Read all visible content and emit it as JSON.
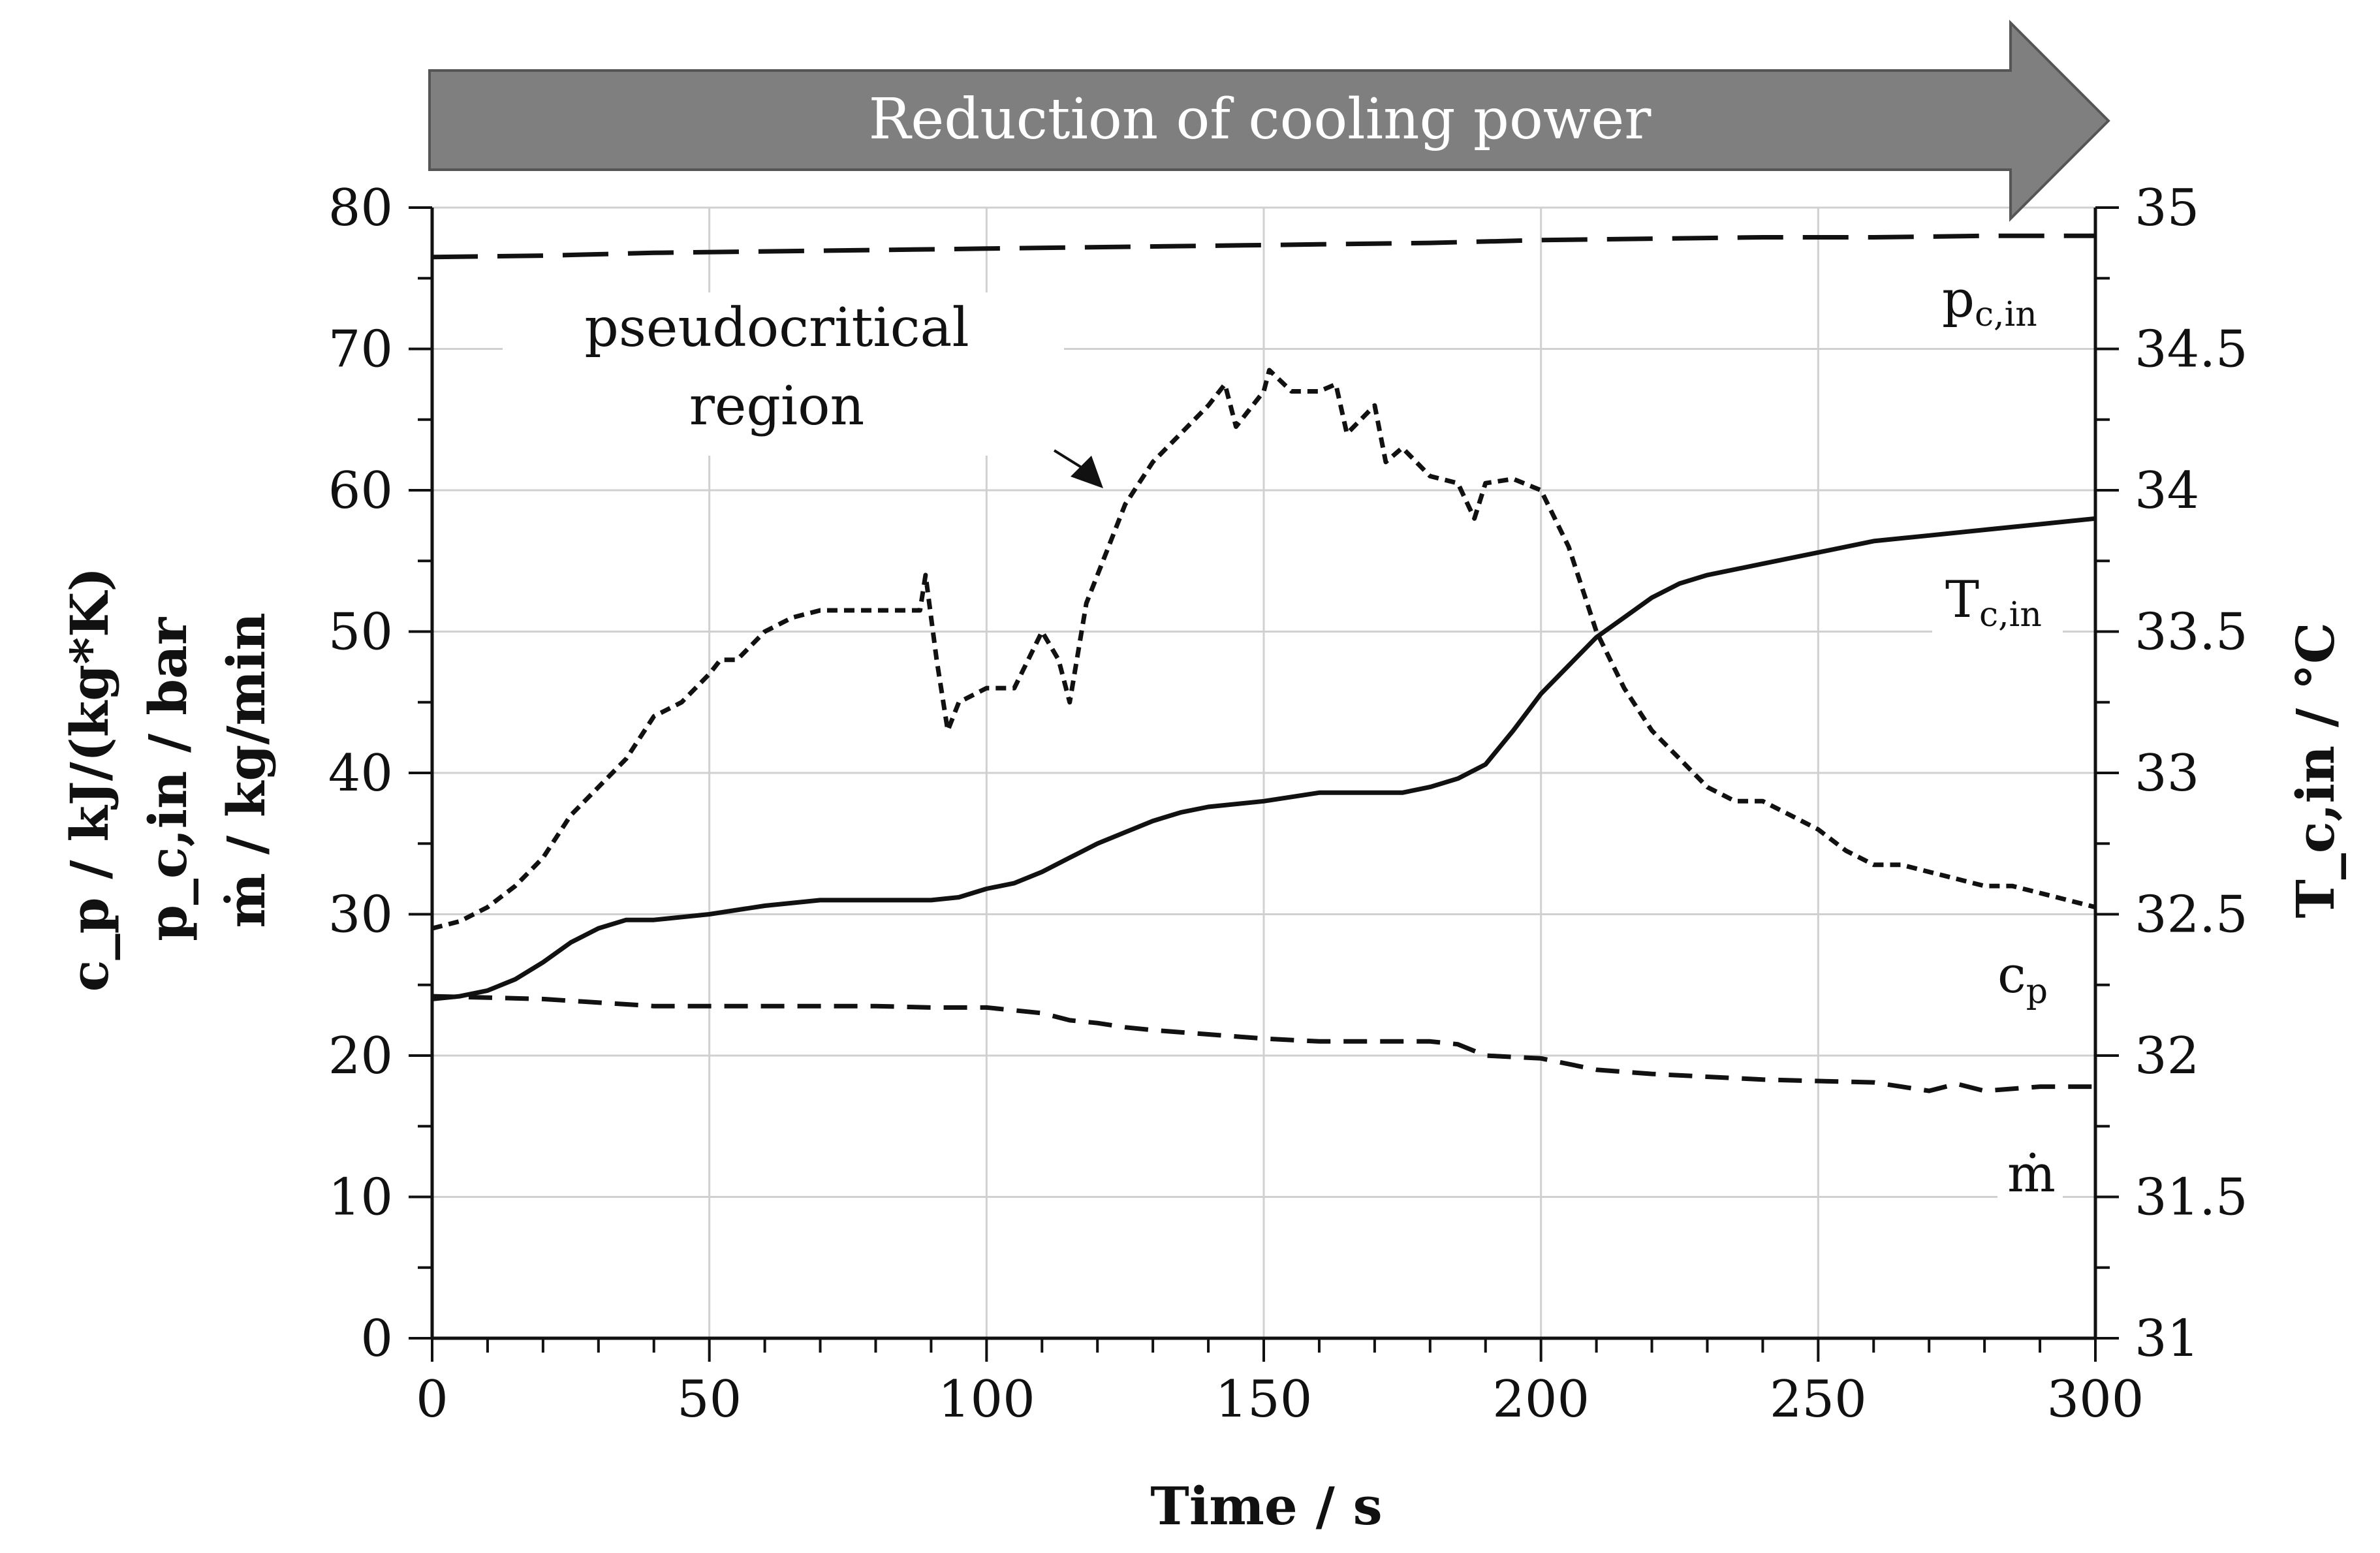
{
  "banner": {
    "text": "Reduction of cooling power"
  },
  "annotations": {
    "region_line1": "pseudocritical",
    "region_line2": "region"
  },
  "chart_data": {
    "type": "line",
    "title": "",
    "xlabel": "Time / s",
    "ylabel_left_lines": [
      "c_p / kJ/(kg*K)",
      "p_c,in / bar",
      "ṁ / kg/min"
    ],
    "ylabel_right": "T_c,in / °C",
    "xlim": [
      0,
      300
    ],
    "ylim_left": [
      0,
      80
    ],
    "ylim_right": [
      31,
      35
    ],
    "x_ticks": [
      0,
      50,
      100,
      150,
      200,
      250,
      300
    ],
    "y_left_ticks": [
      0,
      10,
      20,
      30,
      40,
      50,
      60,
      70,
      80
    ],
    "y_right_ticks": [
      "31",
      "31.5",
      "32",
      "32.5",
      "33",
      "33.5",
      "34",
      "34.5",
      "35"
    ],
    "grid": true,
    "series": [
      {
        "name": "p_c,in",
        "label_main": "p",
        "label_sub": "c,in",
        "axis": "left",
        "style": "long-dash",
        "x": [
          0,
          20,
          40,
          60,
          80,
          100,
          120,
          140,
          160,
          180,
          200,
          220,
          240,
          260,
          280,
          300
        ],
        "y": [
          76.5,
          76.6,
          76.8,
          76.9,
          77.0,
          77.1,
          77.2,
          77.3,
          77.4,
          77.5,
          77.7,
          77.8,
          77.9,
          77.9,
          78.0,
          78.0
        ]
      },
      {
        "name": "c_p",
        "label_main": "c",
        "label_sub": "p",
        "axis": "left",
        "style": "short-dash",
        "x": [
          0,
          5,
          10,
          15,
          20,
          25,
          30,
          35,
          40,
          45,
          50,
          52,
          55,
          60,
          65,
          70,
          80,
          88,
          89,
          91,
          93,
          95,
          100,
          105,
          110,
          113,
          115,
          118,
          120,
          125,
          130,
          135,
          140,
          143,
          145,
          150,
          151,
          155,
          160,
          163,
          165,
          170,
          172,
          175,
          180,
          185,
          188,
          190,
          195,
          200,
          205,
          210,
          215,
          220,
          225,
          230,
          235,
          240,
          245,
          250,
          255,
          260,
          265,
          270,
          275,
          280,
          285,
          290,
          295,
          300
        ],
        "y": [
          29,
          29.5,
          30.5,
          32,
          34,
          37,
          39,
          41,
          44,
          45,
          47,
          48,
          48,
          50,
          51,
          51.5,
          51.5,
          51.5,
          54,
          48,
          43,
          45,
          46,
          46,
          50,
          48,
          45,
          52,
          54,
          59,
          62,
          64,
          66,
          67.5,
          64.5,
          67,
          68.5,
          67,
          67,
          67.5,
          64,
          66,
          62,
          63,
          61,
          60.5,
          58,
          60.5,
          60.8,
          60,
          56,
          50,
          46,
          43,
          41,
          39,
          38,
          38,
          37,
          36,
          34.5,
          33.5,
          33.5,
          33,
          32.5,
          32,
          32,
          31.5,
          31,
          30.5
        ]
      },
      {
        "name": "T_c,in",
        "label_main": "T",
        "label_sub": "c,in",
        "axis": "right",
        "style": "solid",
        "x": [
          0,
          5,
          10,
          15,
          20,
          25,
          30,
          35,
          40,
          50,
          60,
          70,
          80,
          90,
          95,
          100,
          105,
          110,
          115,
          120,
          125,
          130,
          135,
          140,
          150,
          160,
          170,
          175,
          180,
          185,
          190,
          195,
          200,
          205,
          210,
          215,
          220,
          225,
          230,
          240,
          250,
          260,
          270,
          280,
          290,
          300
        ],
        "y": [
          32.2,
          32.21,
          32.23,
          32.27,
          32.33,
          32.4,
          32.45,
          32.48,
          32.48,
          32.5,
          32.53,
          32.55,
          32.55,
          32.55,
          32.56,
          32.59,
          32.61,
          32.65,
          32.7,
          32.75,
          32.79,
          32.83,
          32.86,
          32.88,
          32.9,
          32.93,
          32.93,
          32.93,
          32.95,
          32.98,
          33.03,
          33.15,
          33.28,
          33.38,
          33.48,
          33.55,
          33.62,
          33.67,
          33.7,
          33.74,
          33.78,
          33.82,
          33.84,
          33.86,
          33.88,
          33.9
        ]
      },
      {
        "name": "ṁ",
        "label_main": "ṁ",
        "label_sub": "",
        "axis": "left",
        "style": "medium-dash",
        "x": [
          0,
          20,
          40,
          60,
          80,
          90,
          100,
          110,
          115,
          120,
          125,
          130,
          140,
          150,
          160,
          170,
          180,
          185,
          190,
          200,
          210,
          220,
          230,
          240,
          250,
          260,
          265,
          270,
          275,
          280,
          290,
          300
        ],
        "y": [
          24.2,
          24,
          23.5,
          23.5,
          23.5,
          23.4,
          23.4,
          23,
          22.5,
          22.3,
          22,
          21.8,
          21.5,
          21.2,
          21,
          21,
          21,
          20.8,
          20,
          19.8,
          19,
          18.7,
          18.5,
          18.3,
          18.2,
          18.1,
          17.8,
          17.5,
          18,
          17.5,
          17.8,
          17.8
        ]
      }
    ]
  }
}
